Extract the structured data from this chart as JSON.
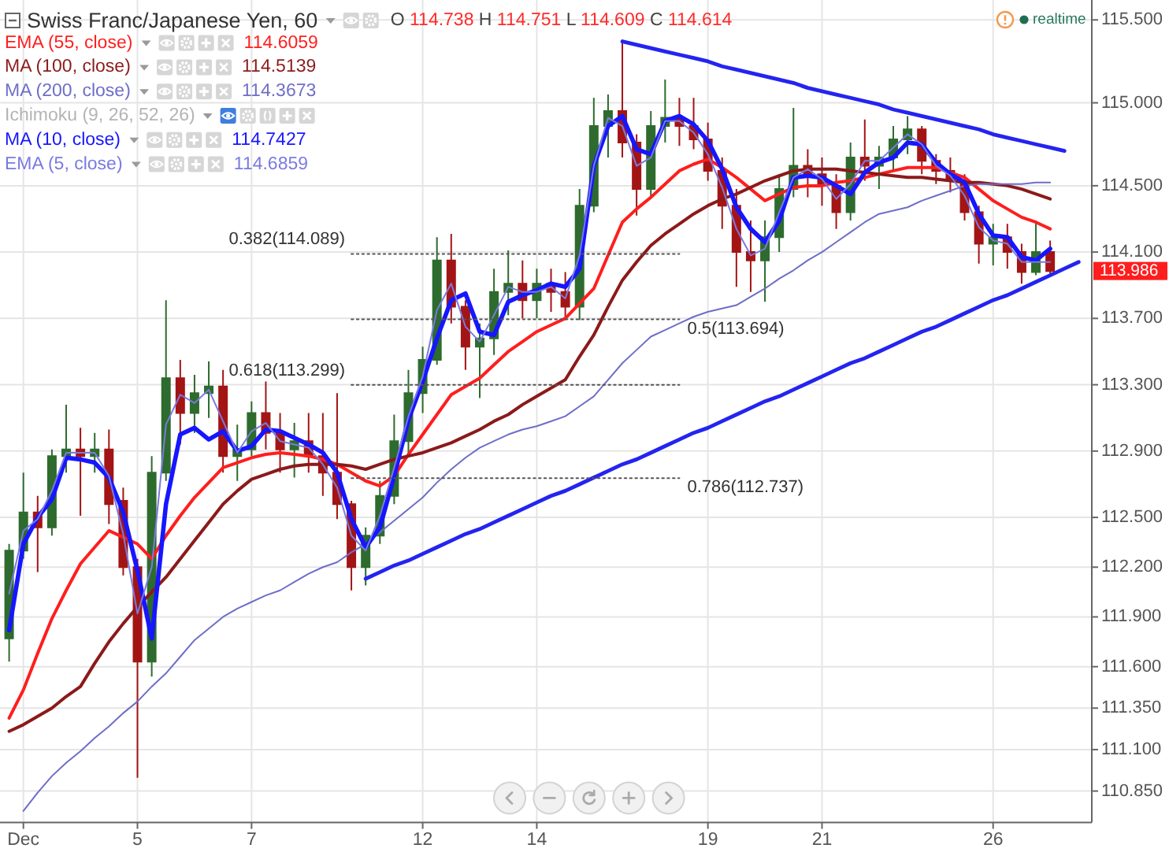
{
  "chart_data": {
    "type": "candlestick",
    "title": "Swiss Franc/Japanese Yen, 60",
    "categories": [
      null,
      "Dec",
      null,
      null,
      null,
      null,
      null,
      null,
      null,
      "5",
      null,
      null,
      null,
      null,
      null,
      null,
      null,
      "7",
      null,
      null,
      null,
      null,
      null,
      null,
      null,
      null,
      null,
      null,
      null,
      "12",
      null,
      null,
      null,
      null,
      null,
      null,
      null,
      "14",
      null,
      null,
      null,
      null,
      null,
      null,
      null,
      null,
      null,
      null,
      null,
      "19",
      null,
      null,
      null,
      null,
      null,
      null,
      null,
      "21",
      null,
      null,
      null,
      null,
      null,
      null,
      null,
      null,
      null,
      null,
      null,
      "26",
      null,
      null,
      null,
      null,
      null,
      null
    ],
    "ohlc": [
      [
        111.77,
        112.34,
        111.63,
        112.3
      ],
      [
        112.3,
        112.77,
        112.25,
        112.53
      ],
      [
        112.53,
        112.63,
        112.17,
        112.44
      ],
      [
        112.44,
        112.91,
        112.39,
        112.87
      ],
      [
        112.87,
        113.18,
        112.77,
        112.91
      ],
      [
        112.91,
        113.04,
        112.51,
        112.87
      ],
      [
        112.87,
        113.01,
        112.77,
        112.91
      ],
      [
        112.91,
        113.03,
        112.46,
        112.58
      ],
      [
        112.6,
        112.68,
        112.15,
        112.2
      ],
      [
        112.2,
        112.25,
        110.93,
        111.63
      ],
      [
        111.63,
        112.87,
        111.54,
        112.77
      ],
      [
        112.77,
        113.81,
        112.72,
        113.34
      ],
      [
        113.34,
        113.45,
        112.94,
        113.13
      ],
      [
        113.13,
        113.36,
        113.01,
        113.25
      ],
      [
        113.25,
        113.44,
        113.1,
        113.29
      ],
      [
        113.29,
        113.39,
        112.77,
        112.87
      ],
      [
        112.87,
        113.06,
        112.72,
        112.91
      ],
      [
        112.91,
        113.2,
        112.87,
        113.13
      ],
      [
        113.13,
        113.32,
        112.91,
        113.01
      ],
      [
        113.01,
        113.13,
        112.77,
        112.91
      ],
      [
        112.91,
        113.07,
        112.74,
        112.96
      ],
      [
        112.96,
        113.13,
        112.77,
        112.87
      ],
      [
        112.87,
        113.13,
        112.63,
        112.77
      ],
      [
        112.77,
        113.25,
        112.49,
        112.58
      ],
      [
        112.58,
        112.6,
        112.06,
        112.2
      ],
      [
        112.2,
        112.44,
        112.09,
        112.39
      ],
      [
        112.39,
        112.72,
        112.34,
        112.63
      ],
      [
        112.63,
        113.12,
        112.58,
        112.96
      ],
      [
        112.96,
        113.39,
        112.87,
        113.25
      ],
      [
        113.25,
        113.53,
        113.13,
        113.45
      ],
      [
        113.45,
        114.19,
        113.42,
        114.05
      ],
      [
        114.05,
        114.21,
        113.67,
        113.77
      ],
      [
        113.77,
        113.81,
        113.39,
        113.53
      ],
      [
        113.53,
        113.67,
        113.22,
        113.58
      ],
      [
        113.58,
        114.0,
        113.48,
        113.86
      ],
      [
        113.86,
        114.11,
        113.72,
        113.91
      ],
      [
        113.91,
        114.05,
        113.7,
        113.81
      ],
      [
        113.81,
        114.0,
        113.7,
        113.91
      ],
      [
        113.91,
        114.0,
        113.74,
        113.86
      ],
      [
        113.86,
        113.98,
        113.69,
        113.77
      ],
      [
        113.77,
        114.48,
        113.69,
        114.38
      ],
      [
        114.38,
        115.03,
        114.34,
        114.86
      ],
      [
        114.86,
        115.05,
        114.67,
        114.95
      ],
      [
        114.95,
        115.38,
        114.67,
        114.76
      ],
      [
        114.76,
        114.81,
        114.32,
        114.48
      ],
      [
        114.48,
        114.95,
        114.43,
        114.86
      ],
      [
        114.86,
        115.14,
        114.76,
        114.91
      ],
      [
        114.91,
        115.03,
        114.74,
        114.86
      ],
      [
        114.86,
        115.03,
        114.72,
        114.78
      ],
      [
        114.78,
        114.88,
        114.53,
        114.59
      ],
      [
        114.59,
        114.67,
        114.24,
        114.38
      ],
      [
        114.38,
        114.48,
        113.89,
        114.1
      ],
      [
        114.1,
        114.29,
        113.86,
        114.05
      ],
      [
        114.05,
        114.29,
        113.8,
        114.19
      ],
      [
        114.19,
        114.57,
        114.1,
        114.48
      ],
      [
        114.48,
        114.97,
        114.43,
        114.62
      ],
      [
        114.62,
        114.72,
        114.43,
        114.57
      ],
      [
        114.57,
        114.67,
        114.38,
        114.5
      ],
      [
        114.5,
        114.57,
        114.24,
        114.34
      ],
      [
        114.34,
        114.76,
        114.29,
        114.67
      ],
      [
        114.67,
        114.9,
        114.53,
        114.62
      ],
      [
        114.62,
        114.74,
        114.48,
        114.67
      ],
      [
        114.67,
        114.86,
        114.59,
        114.78
      ],
      [
        114.78,
        114.92,
        114.69,
        114.84
      ],
      [
        114.84,
        114.86,
        114.57,
        114.65
      ],
      [
        114.65,
        114.69,
        114.51,
        114.59
      ],
      [
        114.59,
        114.67,
        114.46,
        114.53
      ],
      [
        114.53,
        114.57,
        114.29,
        114.34
      ],
      [
        114.34,
        114.38,
        114.03,
        114.15
      ],
      [
        114.15,
        114.27,
        114.02,
        114.19
      ],
      [
        114.19,
        114.27,
        114.0,
        114.1
      ],
      [
        114.1,
        114.15,
        113.91,
        113.98
      ],
      [
        113.98,
        114.29,
        113.96,
        114.1
      ],
      [
        114.1,
        114.17,
        113.97,
        113.986
      ],
      null,
      null
    ],
    "colors": [
      "#2e6b2e",
      "#2e6b2e",
      "#a31515",
      "#2e6b2e",
      "#2e6b2e",
      "#a31515",
      "#2e6b2e",
      "#a31515",
      "#a31515",
      "#a31515",
      "#2e6b2e",
      "#2e6b2e",
      "#a31515",
      "#2e6b2e",
      "#2e6b2e",
      "#a31515",
      "#2e6b2e",
      "#2e6b2e",
      "#a31515",
      "#a31515",
      "#2e6b2e",
      "#a31515",
      "#a31515",
      "#a31515",
      "#a31515",
      "#2e6b2e",
      "#2e6b2e",
      "#2e6b2e",
      "#2e6b2e",
      "#2e6b2e",
      "#2e6b2e",
      "#a31515",
      "#a31515",
      "#2e6b2e",
      "#2e6b2e",
      "#2e6b2e",
      "#a31515",
      "#2e6b2e",
      "#a31515",
      "#a31515",
      "#2e6b2e",
      "#2e6b2e",
      "#2e6b2e",
      "#a31515",
      "#a31515",
      "#2e6b2e",
      "#2e6b2e",
      "#a31515",
      "#a31515",
      "#a31515",
      "#a31515",
      "#a31515",
      "#a31515",
      "#2e6b2e",
      "#2e6b2e",
      "#2e6b2e",
      "#a31515",
      "#a31515",
      "#a31515",
      "#2e6b2e",
      "#a31515",
      "#2e6b2e",
      "#2e6b2e",
      "#2e6b2e",
      "#a31515",
      "#a31515",
      "#a31515",
      "#a31515",
      "#a31515",
      "#2e6b2e",
      "#a31515",
      "#a31515",
      "#2e6b2e",
      "#a31515",
      null,
      null
    ],
    "series": [
      {
        "name": "EMA (55, close)",
        "type": "line",
        "color": "#ff1e1e",
        "values": [
          111.29,
          111.46,
          111.68,
          111.89,
          112.06,
          112.22,
          112.32,
          112.42,
          112.38,
          112.34,
          112.25,
          112.39,
          112.51,
          112.62,
          112.71,
          112.8,
          112.83,
          112.86,
          112.88,
          112.89,
          112.88,
          112.87,
          112.85,
          112.82,
          112.77,
          112.72,
          112.69,
          112.75,
          112.88,
          113.0,
          113.12,
          113.24,
          113.29,
          113.34,
          113.42,
          113.5,
          113.56,
          113.62,
          113.66,
          113.7,
          113.79,
          113.88,
          114.08,
          114.28,
          114.36,
          114.43,
          114.51,
          114.59,
          114.63,
          114.66,
          114.61,
          114.55,
          114.48,
          114.41,
          114.45,
          114.49,
          114.5,
          114.5,
          114.52,
          114.53,
          114.55,
          114.57,
          114.59,
          114.61,
          114.61,
          114.61,
          114.58,
          114.55,
          114.48,
          114.41,
          114.36,
          114.31,
          114.28,
          114.24,
          null,
          null
        ]
      },
      {
        "name": "MA (100, close)",
        "type": "line",
        "color": "#8b1a1a",
        "values": [
          111.21,
          111.25,
          111.3,
          111.35,
          111.42,
          111.48,
          111.62,
          111.75,
          111.86,
          111.96,
          112.05,
          112.14,
          112.25,
          112.36,
          112.47,
          112.58,
          112.66,
          112.73,
          112.76,
          112.79,
          112.81,
          112.82,
          112.82,
          112.82,
          112.81,
          112.79,
          112.82,
          112.85,
          112.87,
          112.89,
          112.92,
          112.95,
          112.99,
          113.03,
          113.08,
          113.12,
          113.18,
          113.23,
          113.28,
          113.33,
          113.47,
          113.6,
          113.77,
          113.93,
          114.04,
          114.14,
          114.21,
          114.27,
          114.33,
          114.38,
          114.42,
          114.45,
          114.49,
          114.53,
          114.56,
          114.59,
          114.6,
          114.6,
          114.6,
          114.59,
          114.58,
          114.57,
          114.56,
          114.55,
          114.55,
          114.54,
          114.53,
          114.52,
          114.52,
          114.51,
          114.5,
          114.48,
          114.45,
          114.42,
          null,
          null
        ]
      },
      {
        "name": "MA (200, close)",
        "type": "line",
        "color": "#6e6ec8",
        "values": [
          null,
          110.73,
          110.84,
          110.94,
          111.02,
          111.09,
          111.17,
          111.24,
          111.32,
          111.39,
          111.48,
          111.56,
          111.66,
          111.76,
          111.83,
          111.9,
          111.95,
          111.99,
          112.03,
          112.06,
          112.11,
          112.16,
          112.2,
          112.23,
          112.29,
          112.34,
          112.41,
          112.48,
          112.55,
          112.62,
          112.71,
          112.79,
          112.86,
          112.92,
          112.96,
          113.0,
          113.03,
          113.05,
          113.08,
          113.11,
          113.17,
          113.23,
          113.33,
          113.43,
          113.51,
          113.59,
          113.63,
          113.67,
          113.71,
          113.74,
          113.76,
          113.78,
          113.83,
          113.88,
          113.94,
          113.99,
          114.05,
          114.1,
          114.16,
          114.22,
          114.28,
          114.33,
          114.35,
          114.37,
          114.41,
          114.44,
          114.47,
          114.5,
          114.51,
          114.51,
          114.51,
          114.51,
          114.52,
          114.52,
          null,
          null
        ]
      },
      {
        "name": "MA (10, close)",
        "type": "line",
        "color": "#1616ff",
        "values": [
          111.82,
          112.34,
          112.5,
          112.61,
          112.86,
          112.85,
          112.83,
          112.74,
          112.53,
          112.18,
          111.77,
          112.58,
          113.0,
          113.04,
          112.97,
          113.02,
          112.9,
          112.93,
          113.03,
          113.02,
          112.98,
          112.94,
          112.89,
          112.77,
          112.49,
          112.32,
          112.44,
          112.75,
          113.09,
          113.32,
          113.58,
          113.81,
          113.85,
          113.62,
          113.6,
          113.8,
          113.84,
          113.87,
          113.91,
          113.89,
          114.0,
          114.62,
          114.86,
          114.92,
          114.72,
          114.69,
          114.89,
          114.92,
          114.87,
          114.77,
          114.6,
          114.37,
          114.24,
          114.16,
          114.29,
          114.55,
          114.56,
          114.55,
          114.5,
          114.45,
          114.58,
          114.64,
          114.67,
          114.76,
          114.75,
          114.64,
          114.57,
          114.52,
          114.33,
          114.2,
          114.19,
          114.07,
          114.05,
          114.12,
          null,
          null
        ]
      },
      {
        "name": "EMA (5, close)",
        "type": "line",
        "color": "#7a7ae0",
        "values": [
          112.04,
          112.42,
          112.49,
          112.66,
          112.89,
          112.89,
          112.89,
          112.75,
          112.4,
          111.92,
          112.2,
          113.06,
          113.24,
          113.19,
          113.27,
          113.08,
          112.89,
          113.02,
          113.07,
          112.96,
          112.94,
          112.92,
          112.82,
          112.68,
          112.39,
          112.3,
          112.51,
          112.8,
          113.11,
          113.35,
          113.75,
          113.91,
          113.65,
          113.56,
          113.72,
          113.89,
          113.86,
          113.86,
          113.89,
          113.82,
          114.08,
          114.62,
          114.91,
          114.86,
          114.62,
          114.67,
          114.89,
          114.89,
          114.82,
          114.69,
          114.49,
          114.24,
          114.08,
          114.12,
          114.34,
          114.55,
          114.6,
          114.54,
          114.42,
          114.51,
          114.65,
          114.65,
          114.73,
          114.81,
          114.75,
          114.62,
          114.56,
          114.44,
          114.25,
          114.17,
          114.15,
          114.04,
          114.04,
          114.04,
          null,
          null
        ]
      },
      {
        "type": "line",
        "color": "#2424f0",
        "values": [
          null,
          null,
          null,
          null,
          null,
          null,
          null,
          null,
          null,
          null,
          null,
          null,
          null,
          null,
          null,
          null,
          null,
          null,
          null,
          null,
          null,
          null,
          null,
          null,
          null,
          null,
          null,
          null,
          null,
          null,
          null,
          null,
          null,
          null,
          null,
          null,
          null,
          null,
          null,
          null,
          null,
          null,
          null,
          115.37,
          115.35,
          115.33,
          115.31,
          115.29,
          115.27,
          115.25,
          115.22,
          115.2,
          115.18,
          115.16,
          115.14,
          115.12,
          115.09,
          115.07,
          115.05,
          115.03,
          115.01,
          114.99,
          114.96,
          114.94,
          114.92,
          114.9,
          114.88,
          114.86,
          114.84,
          114.81,
          114.79,
          114.77,
          114.75,
          114.73,
          114.71,
          null
        ]
      },
      {
        "type": "line",
        "color": "#2424f0",
        "values": [
          null,
          null,
          null,
          null,
          null,
          null,
          null,
          null,
          null,
          null,
          null,
          null,
          null,
          null,
          null,
          null,
          null,
          null,
          null,
          null,
          null,
          null,
          null,
          null,
          null,
          112.13,
          112.17,
          112.21,
          112.24,
          112.28,
          112.32,
          112.36,
          112.4,
          112.43,
          112.47,
          112.51,
          112.55,
          112.59,
          112.63,
          112.66,
          112.7,
          112.74,
          112.78,
          112.82,
          112.85,
          112.89,
          112.93,
          112.97,
          113.01,
          113.04,
          113.08,
          113.12,
          113.16,
          113.2,
          113.23,
          113.27,
          113.31,
          113.35,
          113.39,
          113.43,
          113.46,
          113.5,
          113.54,
          113.58,
          113.62,
          113.65,
          113.69,
          113.73,
          113.77,
          113.81,
          113.84,
          113.88,
          113.92,
          113.96,
          114.0,
          114.04
        ]
      },
      {
        "type": "line",
        "color": "#555555",
        "line_style": "dotted",
        "values": [
          null,
          null,
          null,
          null,
          null,
          null,
          null,
          null,
          null,
          null,
          null,
          null,
          null,
          null,
          null,
          null,
          null,
          null,
          null,
          null,
          null,
          null,
          null,
          null,
          114.089,
          114.089,
          114.089,
          114.089,
          114.089,
          114.089,
          114.089,
          114.089,
          114.089,
          114.089,
          114.089,
          114.089,
          114.089,
          114.089,
          114.089,
          114.089,
          114.089,
          114.089,
          114.089,
          114.089,
          114.089,
          114.089,
          114.089,
          114.089,
          null,
          null,
          null,
          null,
          null,
          null,
          null,
          null,
          null,
          null,
          null,
          null,
          null,
          null,
          null,
          null,
          null,
          null,
          null,
          null,
          null,
          null,
          null,
          null,
          null,
          null,
          null,
          null
        ]
      },
      {
        "type": "line",
        "color": "#555555",
        "line_style": "dotted",
        "values": [
          null,
          null,
          null,
          null,
          null,
          null,
          null,
          null,
          null,
          null,
          null,
          null,
          null,
          null,
          null,
          null,
          null,
          null,
          null,
          null,
          null,
          null,
          null,
          null,
          113.694,
          113.694,
          113.694,
          113.694,
          113.694,
          113.694,
          113.694,
          113.694,
          113.694,
          113.694,
          113.694,
          113.694,
          113.694,
          113.694,
          113.694,
          113.694,
          113.694,
          113.694,
          113.694,
          113.694,
          113.694,
          113.694,
          113.694,
          113.694,
          null,
          null,
          null,
          null,
          null,
          null,
          null,
          null,
          null,
          null,
          null,
          null,
          null,
          null,
          null,
          null,
          null,
          null,
          null,
          null,
          null,
          null,
          null,
          null,
          null,
          null,
          null,
          null
        ]
      },
      {
        "type": "line",
        "color": "#555555",
        "line_style": "dotted",
        "values": [
          null,
          null,
          null,
          null,
          null,
          null,
          null,
          null,
          null,
          null,
          null,
          null,
          null,
          null,
          null,
          null,
          null,
          null,
          null,
          null,
          null,
          null,
          null,
          null,
          113.299,
          113.299,
          113.299,
          113.299,
          113.299,
          113.299,
          113.299,
          113.299,
          113.299,
          113.299,
          113.299,
          113.299,
          113.299,
          113.299,
          113.299,
          113.299,
          113.299,
          113.299,
          113.299,
          113.299,
          113.299,
          113.299,
          113.299,
          113.299,
          null,
          null,
          null,
          null,
          null,
          null,
          null,
          null,
          null,
          null,
          null,
          null,
          null,
          null,
          null,
          null,
          null,
          null,
          null,
          null,
          null,
          null,
          null,
          null,
          null,
          null,
          null,
          null
        ]
      },
      {
        "type": "line",
        "color": "#555555",
        "line_style": "dotted",
        "values": [
          null,
          null,
          null,
          null,
          null,
          null,
          null,
          null,
          null,
          null,
          null,
          null,
          null,
          null,
          null,
          null,
          null,
          null,
          null,
          null,
          null,
          null,
          null,
          null,
          112.737,
          112.737,
          112.737,
          112.737,
          112.737,
          112.737,
          112.737,
          112.737,
          112.737,
          112.737,
          112.737,
          112.737,
          112.737,
          112.737,
          112.737,
          112.737,
          112.737,
          112.737,
          112.737,
          112.737,
          112.737,
          112.737,
          112.737,
          112.737,
          null,
          null,
          null,
          null,
          null,
          null,
          null,
          null,
          null,
          null,
          null,
          null,
          null,
          null,
          null,
          null,
          null,
          null,
          null,
          null,
          null,
          null,
          null,
          null,
          null,
          null,
          null,
          null
        ]
      }
    ],
    "ylim": [
      110.66,
      115.62
    ],
    "yticks": [
      {
        "value": 115.5,
        "label": "115.500"
      },
      {
        "value": 115,
        "label": "115.000"
      },
      {
        "value": 114.5,
        "label": "114.500"
      },
      {
        "value": 114.1,
        "label": "114.100"
      },
      {
        "value": 113.7,
        "label": "113.700"
      },
      {
        "value": 113.3,
        "label": "113.300"
      },
      {
        "value": 112.9,
        "label": "112.900"
      },
      {
        "value": 112.5,
        "label": "112.500"
      },
      {
        "value": 112.2,
        "label": "112.200"
      },
      {
        "value": 111.9,
        "label": "111.900"
      },
      {
        "value": 111.6,
        "label": "111.600"
      },
      {
        "value": 111.35,
        "label": "111.350"
      },
      {
        "value": 111.1,
        "label": "111.100"
      },
      {
        "value": 110.85,
        "label": "110.850"
      }
    ],
    "grid": true,
    "legend": "top left",
    "annotations": [
      "Ichimoku (9, 26, 52, 26)",
      "O 114.738 H 114.751 L 114.609 C 114.614",
      "realtime",
      "113.986",
      "114.6059",
      "114.5139",
      "114.3673",
      "114.7427",
      "114.6859",
      "0.382(114.089)",
      "0.5(113.694)",
      "0.618(113.299)",
      "0.786(112.737)"
    ]
  }
}
